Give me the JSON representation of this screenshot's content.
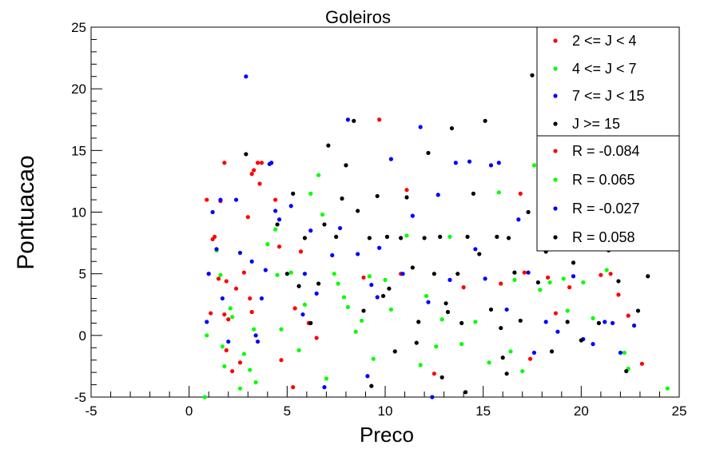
{
  "chart_data": {
    "type": "scatter",
    "title": "Goleiros",
    "xlabel": "Preco",
    "ylabel": "Pontuacao",
    "xlim": [
      -5,
      25
    ],
    "ylim": [
      -5,
      25
    ],
    "xticks": [
      "-5",
      "0",
      "5",
      "10",
      "15",
      "20",
      "25"
    ],
    "yticks": [
      "-5",
      "0",
      "5",
      "10",
      "15",
      "20",
      "25"
    ],
    "grid": false,
    "legend_position": "top-right",
    "series": [
      {
        "name": "2 <= J < 4",
        "color": "#ff0000",
        "points": [
          [
            0.9,
            11
          ],
          [
            1.0,
            5
          ],
          [
            1.1,
            1.8
          ],
          [
            1.2,
            7.8
          ],
          [
            1.3,
            8
          ],
          [
            1.5,
            4.6
          ],
          [
            1.6,
            10.9
          ],
          [
            1.8,
            14
          ],
          [
            1.9,
            4.4
          ],
          [
            1.8,
            1.7
          ],
          [
            2.0,
            1.3
          ],
          [
            1.9,
            -1.2
          ],
          [
            2.4,
            3.8
          ],
          [
            2.6,
            -2.2
          ],
          [
            2.8,
            5.1
          ],
          [
            3.0,
            9.6
          ],
          [
            3.2,
            13.1
          ],
          [
            3.3,
            13.4
          ],
          [
            3.5,
            14
          ],
          [
            3.7,
            14
          ],
          [
            3.6,
            12.3
          ],
          [
            3.2,
            1.9
          ],
          [
            3.1,
            3.0
          ],
          [
            4.4,
            11.0
          ],
          [
            4.6,
            7.2
          ],
          [
            4.7,
            -2.0
          ],
          [
            5.4,
            2.2
          ],
          [
            5.7,
            6.8
          ],
          [
            5.3,
            -4.2
          ],
          [
            6.1,
            1.0
          ],
          [
            6.5,
            -0.2
          ],
          [
            8.9,
            4.7
          ],
          [
            9.7,
            17.5
          ],
          [
            10.8,
            5.0
          ],
          [
            11.1,
            11.8
          ],
          [
            12.5,
            -3.1
          ],
          [
            14.0,
            3.9
          ],
          [
            15.9,
            4.2
          ],
          [
            16.9,
            11.5
          ],
          [
            17.1,
            5.1
          ],
          [
            17.4,
            -1.9
          ],
          [
            18.3,
            4.7
          ],
          [
            18.7,
            1.8
          ],
          [
            19.4,
            3.9
          ],
          [
            20.3,
            9.2
          ],
          [
            21.0,
            4.9
          ],
          [
            21.5,
            5.0
          ],
          [
            21.9,
            3.3
          ],
          [
            22.4,
            1.6
          ],
          [
            23.1,
            -2.3
          ],
          [
            2.2,
            -2.9
          ]
        ]
      },
      {
        "name": "4 <= J < 7",
        "color": "#00ff00",
        "points": [
          [
            0.8,
            -5
          ],
          [
            0.9,
            0
          ],
          [
            1.4,
            6.9
          ],
          [
            1.6,
            4.9
          ],
          [
            1.7,
            -0.9
          ],
          [
            2.1,
            2.2
          ],
          [
            2.2,
            1.5
          ],
          [
            1.8,
            -2.5
          ],
          [
            2.6,
            -4.3
          ],
          [
            2.8,
            -1.5
          ],
          [
            3.3,
            0.5
          ],
          [
            3.1,
            -2.8
          ],
          [
            3.4,
            -3.8
          ],
          [
            4.0,
            7.4
          ],
          [
            4.4,
            8.6
          ],
          [
            4.5,
            4.9
          ],
          [
            4.7,
            0.5
          ],
          [
            5.2,
            5.1
          ],
          [
            5.6,
            -1.2
          ],
          [
            5.9,
            2.5
          ],
          [
            6.2,
            11.5
          ],
          [
            6.6,
            13.0
          ],
          [
            6.8,
            9.8
          ],
          [
            7.4,
            5.0
          ],
          [
            7.6,
            4.2
          ],
          [
            7.9,
            3.1
          ],
          [
            8.5,
            0.3
          ],
          [
            8.8,
            1.2
          ],
          [
            9.2,
            4.8
          ],
          [
            9.4,
            -1.9
          ],
          [
            10.0,
            4.5
          ],
          [
            10.3,
            2.1
          ],
          [
            11.1,
            8.1
          ],
          [
            11.8,
            -2.4
          ],
          [
            12.6,
            -0.9
          ],
          [
            12.9,
            1.3
          ],
          [
            13.3,
            8.0
          ],
          [
            13.9,
            -0.7
          ],
          [
            14.6,
            1.1
          ],
          [
            15.3,
            -2.2
          ],
          [
            15.8,
            11.6
          ],
          [
            16.4,
            -1.3
          ],
          [
            16.6,
            4.5
          ],
          [
            17.0,
            -2.9
          ],
          [
            17.6,
            13.8
          ],
          [
            17.9,
            3.7
          ],
          [
            18.4,
            4.3
          ],
          [
            19.1,
            4.6
          ],
          [
            19.3,
            2.0
          ],
          [
            20.1,
            4.3
          ],
          [
            20.6,
            1.4
          ],
          [
            21.1,
            7.9
          ],
          [
            21.3,
            5.3
          ],
          [
            22.2,
            -1.4
          ],
          [
            22.4,
            -2.7
          ],
          [
            24.4,
            -4.3
          ],
          [
            7.0,
            -3.5
          ],
          [
            8.1,
            2.3
          ],
          [
            12.1,
            3.2
          ]
        ]
      },
      {
        "name": "7 <= J < 15",
        "color": "#0000ff",
        "points": [
          [
            0.9,
            1.1
          ],
          [
            1.0,
            5.0
          ],
          [
            1.2,
            10.0
          ],
          [
            1.4,
            7.0
          ],
          [
            1.6,
            11.0
          ],
          [
            1.7,
            3.0
          ],
          [
            2.0,
            -0.5
          ],
          [
            2.4,
            11.0
          ],
          [
            2.6,
            6.7
          ],
          [
            2.9,
            21.0
          ],
          [
            3.2,
            6.0
          ],
          [
            3.4,
            0.0
          ],
          [
            3.5,
            -0.5
          ],
          [
            3.7,
            3.0
          ],
          [
            3.9,
            5.3
          ],
          [
            4.1,
            13.9
          ],
          [
            4.2,
            14.0
          ],
          [
            4.4,
            10.1
          ],
          [
            4.6,
            9.4
          ],
          [
            5.2,
            10.5
          ],
          [
            5.8,
            1.7
          ],
          [
            5.9,
            5.0
          ],
          [
            6.2,
            8.5
          ],
          [
            6.5,
            3.4
          ],
          [
            7.3,
            6.5
          ],
          [
            7.7,
            8.7
          ],
          [
            8.1,
            17.5
          ],
          [
            8.6,
            6.6
          ],
          [
            9.1,
            -3.3
          ],
          [
            9.3,
            4.1
          ],
          [
            9.6,
            3.1
          ],
          [
            9.7,
            7.1
          ],
          [
            10.3,
            14.3
          ],
          [
            10.9,
            5.0
          ],
          [
            11.4,
            9.7
          ],
          [
            11.8,
            16.9
          ],
          [
            12.4,
            -5.0
          ],
          [
            12.7,
            11.4
          ],
          [
            13.3,
            4.5
          ],
          [
            13.6,
            14.0
          ],
          [
            14.3,
            14.1
          ],
          [
            14.6,
            7.0
          ],
          [
            15.1,
            4.6
          ],
          [
            15.4,
            13.8
          ],
          [
            16.2,
            2.1
          ],
          [
            16.8,
            9.4
          ],
          [
            17.3,
            5.1
          ],
          [
            17.6,
            -1.4
          ],
          [
            18.2,
            1.1
          ],
          [
            18.8,
            0.3
          ],
          [
            19.6,
            4.8
          ],
          [
            20.1,
            -0.3
          ],
          [
            20.6,
            -0.7
          ],
          [
            21.2,
            1.1
          ],
          [
            21.6,
            1.0
          ],
          [
            22.0,
            -1.4
          ],
          [
            22.7,
            0.8
          ],
          [
            15.8,
            14.0
          ],
          [
            12.2,
            2.7
          ],
          [
            6.9,
            -4.2
          ]
        ]
      },
      {
        "name": "J >= 15",
        "color": "#000000",
        "points": [
          [
            2.9,
            14.7
          ],
          [
            4.5,
            9.0
          ],
          [
            5.0,
            5.0
          ],
          [
            5.3,
            11.5
          ],
          [
            5.6,
            4.0
          ],
          [
            5.9,
            7.9
          ],
          [
            6.2,
            1.0
          ],
          [
            6.6,
            4.2
          ],
          [
            6.9,
            9.0
          ],
          [
            7.1,
            15.4
          ],
          [
            7.5,
            8.0
          ],
          [
            7.8,
            11.1
          ],
          [
            8.0,
            13.8
          ],
          [
            8.4,
            17.4
          ],
          [
            8.6,
            10.1
          ],
          [
            8.9,
            2.0
          ],
          [
            9.2,
            7.9
          ],
          [
            9.6,
            11.3
          ],
          [
            9.9,
            3.2
          ],
          [
            10.1,
            8.0
          ],
          [
            10.5,
            -1.3
          ],
          [
            10.8,
            7.9
          ],
          [
            11.1,
            11.2
          ],
          [
            11.4,
            5.5
          ],
          [
            11.7,
            1.1
          ],
          [
            12.0,
            7.9
          ],
          [
            12.2,
            14.8
          ],
          [
            12.5,
            5.0
          ],
          [
            12.8,
            8.0
          ],
          [
            13.1,
            2.6
          ],
          [
            13.4,
            16.8
          ],
          [
            13.7,
            5.0
          ],
          [
            13.9,
            1.0
          ],
          [
            14.2,
            8.0
          ],
          [
            14.5,
            11.5
          ],
          [
            14.8,
            6.6
          ],
          [
            15.1,
            17.4
          ],
          [
            15.4,
            2.1
          ],
          [
            15.7,
            8.0
          ],
          [
            16.0,
            -1.8
          ],
          [
            16.3,
            7.9
          ],
          [
            16.6,
            5.1
          ],
          [
            16.9,
            1.2
          ],
          [
            17.3,
            10.0
          ],
          [
            17.5,
            21.1
          ],
          [
            17.8,
            4.3
          ],
          [
            18.2,
            6.8
          ],
          [
            18.5,
            -1.3
          ],
          [
            18.9,
            8.2
          ],
          [
            19.3,
            1.1
          ],
          [
            19.6,
            5.9
          ],
          [
            20.0,
            -0.4
          ],
          [
            20.4,
            7.6
          ],
          [
            20.9,
            1.0
          ],
          [
            21.4,
            6.9
          ],
          [
            21.9,
            4.4
          ],
          [
            22.3,
            -2.9
          ],
          [
            22.9,
            2.0
          ],
          [
            23.4,
            4.8
          ],
          [
            9.3,
            -4.1
          ],
          [
            10.2,
            3.8
          ],
          [
            12.9,
            -3.4
          ],
          [
            14.1,
            -4.6
          ],
          [
            16.2,
            -3.1
          ],
          [
            11.6,
            -0.6
          ],
          [
            13.2,
            1.9
          ],
          [
            15.9,
            0.6
          ]
        ]
      }
    ],
    "stats": [
      {
        "label": "R = -0.084",
        "color": "#ff0000"
      },
      {
        "label": "R = 0.065",
        "color": "#00ff00"
      },
      {
        "label": "R = -0.027",
        "color": "#0000ff"
      },
      {
        "label": "R = 0.058",
        "color": "#000000"
      }
    ]
  }
}
